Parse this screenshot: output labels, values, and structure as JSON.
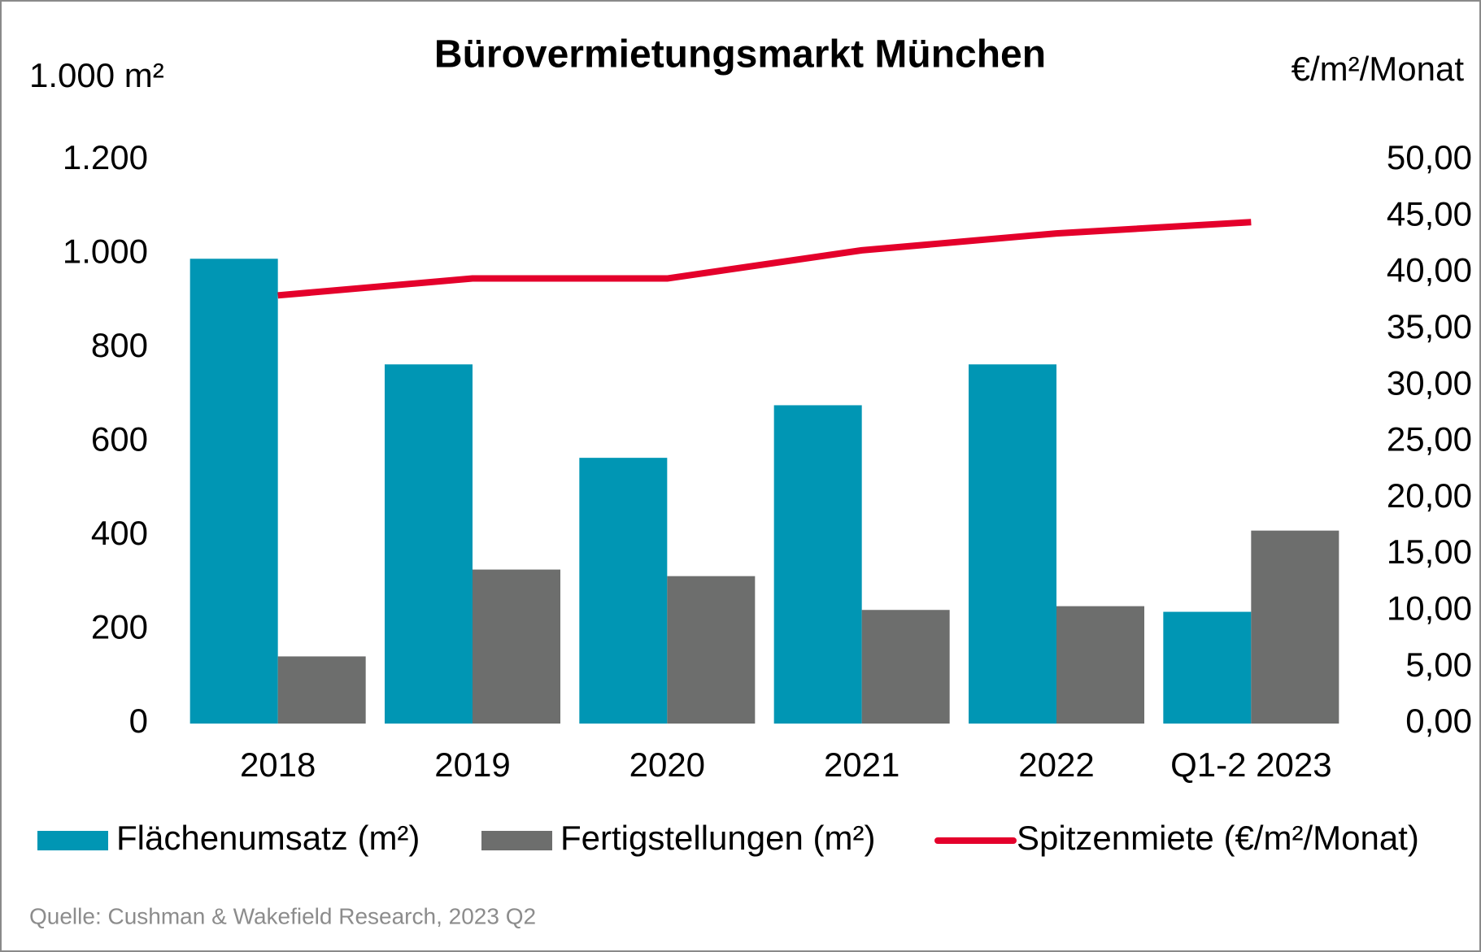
{
  "chart_data": {
    "type": "bar",
    "title": "Bürovermietungsmarkt München",
    "y_label": "1.000 m²",
    "y2_label": "€/m²/Monat",
    "source": "Quelle: Cushman & Wakefield Research, 2023 Q2",
    "categories": [
      "2018",
      "2019",
      "2020",
      "2021",
      "2022",
      "Q1-2 2023"
    ],
    "series": [
      {
        "name": "Flächenumsatz (m²)",
        "color": "#0096b4",
        "values": [
          990,
          765,
          566,
          678,
          765,
          238
        ]
      },
      {
        "name": "Fertigstellungen (m²)",
        "color": "#6d6e6d",
        "values": [
          143,
          328,
          314,
          242,
          250,
          411
        ]
      },
      {
        "name": "Spitzenmiete (€/m²/Monat)",
        "color": "#e4002b",
        "type": "line",
        "axis": "y2",
        "values": [
          38.0,
          39.5,
          39.5,
          42.0,
          43.5,
          44.5
        ]
      }
    ],
    "ylim": [
      0,
      1200
    ],
    "yticks": [
      0,
      200,
      400,
      600,
      800,
      {
        "value": 1000,
        "label": "1.000"
      },
      {
        "value": 1200,
        "label": "1.200"
      }
    ],
    "y2lim": [
      0,
      50
    ],
    "y2ticks": [
      {
        "value": 0,
        "label": "0,00"
      },
      {
        "value": 5,
        "label": "5,00"
      },
      {
        "value": 10,
        "label": "10,00"
      },
      {
        "value": 15,
        "label": "15,00"
      },
      {
        "value": 20,
        "label": "20,00"
      },
      {
        "value": 25,
        "label": "25,00"
      },
      {
        "value": 30,
        "label": "30,00"
      },
      {
        "value": 35,
        "label": "35,00"
      },
      {
        "value": 40,
        "label": "40,00"
      },
      {
        "value": 45,
        "label": "45,00"
      },
      {
        "value": 50,
        "label": "50,00"
      }
    ],
    "grid": false,
    "legend": "bottom"
  }
}
